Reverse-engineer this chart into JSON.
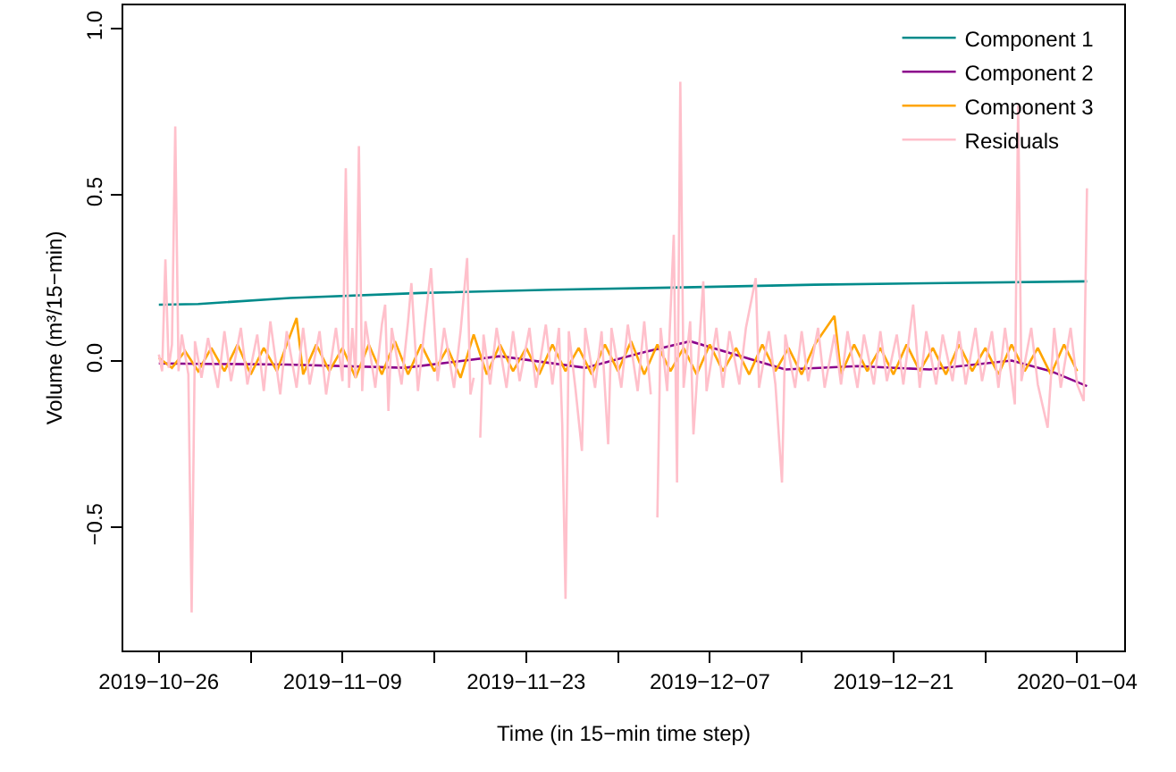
{
  "chart_data": {
    "type": "line",
    "xlabel": "Time (in 15−min time step)",
    "ylabel": "Volume (m³/15−min)",
    "xlim": [
      "2019-10-23T07:00",
      "2020-01-07T14:00"
    ],
    "xticks": [
      {
        "value": "2019-10-26",
        "label": "2019−10−26"
      },
      {
        "value": "2019-11-02",
        "label": null
      },
      {
        "value": "2019-11-09",
        "label": "2019−11−09"
      },
      {
        "value": "2019-11-16",
        "label": null
      },
      {
        "value": "2019-11-23",
        "label": "2019−11−23"
      },
      {
        "value": "2019-11-30",
        "label": null
      },
      {
        "value": "2019-12-07",
        "label": "2019−12−07"
      },
      {
        "value": "2019-12-14",
        "label": null
      },
      {
        "value": "2019-12-21",
        "label": "2019−12−21"
      },
      {
        "value": "2019-12-28",
        "label": null
      },
      {
        "value": "2020-01-04",
        "label": "2020−01−04"
      }
    ],
    "ylim": [
      -0.87,
      1.07
    ],
    "yticks": [
      {
        "value": -0.5,
        "label": "−0.5"
      },
      {
        "value": 0,
        "label": "0.0"
      },
      {
        "value": 0.5,
        "label": "0.5"
      },
      {
        "value": 1.0,
        "label": "1.0"
      }
    ],
    "legend": "top right",
    "marker": "none",
    "line_style": "solid",
    "series": [
      {
        "name": "Component 1",
        "color": "#008b8b",
        "x": [
          "2019-10-26",
          "2019-10-29",
          "2019-11-05",
          "2019-11-15",
          "2019-11-25",
          "2019-12-05",
          "2019-12-15",
          "2019-12-25",
          "2020-01-04T18:00"
        ],
        "values": [
          0.17,
          0.172,
          0.19,
          0.205,
          0.215,
          0.222,
          0.23,
          0.235,
          0.24
        ]
      },
      {
        "name": "Component 2",
        "color": "#8b008b",
        "x": [
          "2019-10-26",
          "2019-11-04T18:00",
          "2019-11-13T18:00",
          "2019-11-21",
          "2019-11-27T12:00",
          "2019-12-01T18:00",
          "2019-12-05T12:00",
          "2019-12-12T18:00",
          "2019-12-18T06:00",
          "2019-12-23T18:00",
          "2019-12-30",
          "2020-01-02",
          "2020-01-04T18:00"
        ],
        "values": [
          -0.007,
          -0.01,
          -0.02,
          0.015,
          -0.02,
          0.025,
          0.06,
          -0.025,
          -0.015,
          -0.025,
          0.002,
          -0.03,
          -0.075
        ]
      },
      {
        "name": "Component 3",
        "color": "#ffa500",
        "x": [
          "2019-10-26",
          "2019-10-27",
          "2019-10-28",
          "2019-10-29",
          "2019-10-30",
          "2019-10-31",
          "2019-11-01",
          "2019-11-02",
          "2019-11-03",
          "2019-11-04",
          "2019-11-05T12:00",
          "2019-11-06",
          "2019-11-07",
          "2019-11-08",
          "2019-11-09",
          "2019-11-10",
          "2019-11-11",
          "2019-11-12",
          "2019-11-13",
          "2019-11-14",
          "2019-11-15",
          "2019-11-16",
          "2019-11-17",
          "2019-11-18",
          "2019-11-19",
          "2019-11-20",
          "2019-11-21",
          "2019-11-22",
          "2019-11-23",
          "2019-11-24",
          "2019-11-25",
          "2019-11-26",
          "2019-11-27",
          "2019-11-28",
          "2019-11-29",
          "2019-11-30",
          "2019-12-01",
          "2019-12-02",
          "2019-12-03",
          "2019-12-04",
          "2019-12-05",
          "2019-12-06",
          "2019-12-07",
          "2019-12-08",
          "2019-12-09",
          "2019-12-10",
          "2019-12-11",
          "2019-12-12",
          "2019-12-13",
          "2019-12-14",
          "2019-12-15",
          "2019-12-16T12:00",
          "2019-12-17",
          "2019-12-18",
          "2019-12-19",
          "2019-12-20",
          "2019-12-21",
          "2019-12-22",
          "2019-12-23",
          "2019-12-24",
          "2019-12-25",
          "2019-12-26",
          "2019-12-27",
          "2019-12-28",
          "2019-12-29",
          "2019-12-30",
          "2019-12-31",
          "2020-01-01",
          "2020-01-02",
          "2020-01-03",
          "2020-01-04"
        ],
        "values": [
          0.01,
          -0.02,
          0.03,
          -0.03,
          0.04,
          -0.03,
          0.05,
          -0.04,
          0.04,
          -0.03,
          0.13,
          -0.04,
          0.05,
          -0.03,
          0.04,
          -0.05,
          0.05,
          -0.04,
          0.06,
          -0.04,
          0.05,
          -0.03,
          0.04,
          -0.05,
          0.08,
          -0.04,
          0.05,
          -0.03,
          0.04,
          -0.04,
          0.05,
          -0.03,
          0.04,
          -0.04,
          0.05,
          -0.03,
          0.06,
          -0.04,
          0.05,
          -0.03,
          0.04,
          -0.04,
          0.05,
          -0.03,
          0.04,
          -0.04,
          0.05,
          -0.03,
          0.04,
          -0.04,
          0.05,
          0.136,
          -0.04,
          0.05,
          -0.03,
          0.04,
          -0.04,
          0.05,
          -0.03,
          0.04,
          -0.04,
          0.05,
          -0.03,
          0.04,
          -0.04,
          0.05,
          -0.03,
          0.04,
          -0.04,
          0.05,
          -0.03
        ]
      },
      {
        "name": "Residuals",
        "color": "#ffc0cb",
        "x": [
          "2019-10-26T00:00",
          "2019-10-26T06:00",
          "2019-10-26T12:00",
          "2019-10-26T18:00",
          "2019-10-27T00:00",
          "2019-10-27T06:00",
          "2019-10-27T12:00",
          "2019-10-27T18:00",
          "2019-10-28T06:00",
          "2019-10-28T12:00",
          "2019-10-28T18:00",
          "2019-10-29T06:00",
          "2019-10-29T18:00",
          "2019-10-30T12:00",
          "2019-10-31T00:00",
          "2019-10-31T12:00",
          "2019-11-01T06:00",
          "2019-11-01T18:00",
          "2019-11-02T12:00",
          "2019-11-03T00:00",
          "2019-11-03T12:00",
          "2019-11-04T06:00",
          "2019-11-04T18:00",
          "2019-11-05T12:00",
          "2019-11-06T00:00",
          "2019-11-06T12:00",
          "2019-11-07T06:00",
          "2019-11-07T18:00",
          "2019-11-08T12:00",
          "2019-11-09T00:00",
          "2019-11-09T06:00",
          "2019-11-09T12:00",
          "2019-11-09T18:00",
          "2019-11-10T00:00",
          "2019-11-10T06:00",
          "2019-11-10T12:00",
          "2019-11-10T18:00",
          "2019-11-11T12:00",
          "2019-11-12T00:00",
          "2019-11-12T06:00",
          "2019-11-12T12:00",
          "2019-11-12T18:00",
          "2019-11-13T12:00",
          "2019-11-14T00:00",
          "2019-11-14T06:00",
          "2019-11-14T18:00",
          "2019-11-15T06:00",
          "2019-11-15T18:00",
          "2019-11-16T06:00",
          "2019-11-16T18:00",
          "2019-11-17T12:00",
          "2019-11-18T00:00",
          "2019-11-18T12:00",
          "2019-11-18T18:00",
          "2019-11-19T00:00",
          "2019-11-19T06:00",
          "2019-11-19T12:00",
          "2019-11-19T18:00",
          "2019-11-20T06:00",
          "2019-11-20T18:00",
          "2019-11-21T12:00",
          "2019-11-22T00:00",
          "2019-11-22T12:00",
          "2019-11-23T06:00",
          "2019-11-23T18:00",
          "2019-11-24T12:00",
          "2019-11-25T00:00",
          "2019-11-25T12:00",
          "2019-11-25T18:00",
          "2019-11-26T00:00",
          "2019-11-26T06:00",
          "2019-11-26T18:00",
          "2019-11-27T06:00",
          "2019-11-27T12:00",
          "2019-11-28T06:00",
          "2019-11-28T18:00",
          "2019-11-29T06:00",
          "2019-11-29T12:00",
          "2019-11-30T06:00",
          "2019-11-30T18:00",
          "2019-12-01T12:00",
          "2019-12-02T00:00",
          "2019-12-02T12:00",
          "2019-12-02T18:00",
          "2019-12-03T00:00",
          "2019-12-03T06:00",
          "2019-12-03T18:00",
          "2019-12-04T06:00",
          "2019-12-04T12:00",
          "2019-12-04T18:00",
          "2019-12-05T00:00",
          "2019-12-05T12:00",
          "2019-12-05T18:00",
          "2019-12-06T12:00",
          "2019-12-06T18:00",
          "2019-12-07T12:00",
          "2019-12-08T00:00",
          "2019-12-08T12:00",
          "2019-12-09T06:00",
          "2019-12-09T18:00",
          "2019-12-10T12:00",
          "2019-12-10T18:00",
          "2019-12-11T12:00",
          "2019-12-12T00:00",
          "2019-12-12T12:00",
          "2019-12-12T18:00",
          "2019-12-13T12:00",
          "2019-12-14T00:00",
          "2019-12-14T12:00",
          "2019-12-15T06:00",
          "2019-12-15T18:00",
          "2019-12-16T12:00",
          "2019-12-17T00:00",
          "2019-12-17T12:00",
          "2019-12-18T06:00",
          "2019-12-18T18:00",
          "2019-12-19T12:00",
          "2019-12-20T00:00",
          "2019-12-20T12:00",
          "2019-12-21T06:00",
          "2019-12-21T18:00",
          "2019-12-22T12:00",
          "2019-12-23T00:00",
          "2019-12-23T12:00",
          "2019-12-24T06:00",
          "2019-12-24T18:00",
          "2019-12-25T12:00",
          "2019-12-26T00:00",
          "2019-12-26T12:00",
          "2019-12-27T06:00",
          "2019-12-27T18:00",
          "2019-12-28T12:00",
          "2019-12-29T00:00",
          "2019-12-29T12:00",
          "2019-12-30T06:00",
          "2019-12-30T12:00",
          "2019-12-30T18:00",
          "2019-12-31T12:00",
          "2020-01-01T00:00",
          "2020-01-01T18:00",
          "2020-01-02T06:00",
          "2020-01-02T18:00",
          "2020-01-03T12:00",
          "2020-01-04T00:00",
          "2020-01-04T12:00",
          "2020-01-04T18:00"
        ],
        "values": [
          0.02,
          -0.03,
          0.306,
          -0.02,
          0.05,
          0.706,
          -0.03,
          0.08,
          -0.04,
          -0.756,
          0.06,
          -0.05,
          0.07,
          -0.08,
          0.09,
          -0.06,
          0.1,
          -0.07,
          0.08,
          -0.09,
          0.12,
          -0.1,
          0.09,
          -0.08,
          0.1,
          -0.07,
          0.09,
          -0.1,
          0.1,
          -0.06,
          0.58,
          -0.08,
          0.1,
          -0.05,
          0.647,
          -0.09,
          0.12,
          -0.08,
          0.11,
          0.17,
          -0.15,
          0.1,
          -0.07,
          0.12,
          0.235,
          -0.09,
          0.1,
          0.28,
          -0.06,
          0.1,
          -0.08,
          0.09,
          0.31,
          -0.1,
          -0.05,
          null,
          -0.23,
          0.08,
          -0.07,
          0.1,
          -0.08,
          0.09,
          -0.06,
          0.1,
          -0.08,
          0.11,
          -0.07,
          0.1,
          -0.19,
          -0.715,
          0.09,
          -0.08,
          -0.27,
          0.1,
          -0.08,
          0.09,
          -0.25,
          0.1,
          -0.08,
          0.11,
          -0.09,
          0.12,
          -0.1,
          null,
          -0.47,
          0.1,
          -0.09,
          0.38,
          -0.365,
          0.84,
          -0.08,
          0.12,
          -0.22,
          0.24,
          -0.09,
          0.1,
          -0.08,
          0.09,
          -0.07,
          0.1,
          0.25,
          -0.08,
          0.09,
          -0.07,
          -0.365,
          0.08,
          -0.08,
          0.09,
          -0.06,
          0.1,
          -0.08,
          0.08,
          -0.07,
          0.09,
          -0.08,
          0.08,
          -0.07,
          0.09,
          -0.06,
          0.08,
          -0.07,
          0.17,
          -0.08,
          0.09,
          -0.07,
          0.08,
          -0.06,
          0.09,
          -0.07,
          0.1,
          -0.06,
          0.09,
          -0.08,
          0.1,
          -0.13,
          0.77,
          -0.06,
          0.1,
          -0.07,
          -0.2,
          0.1,
          -0.08,
          0.1,
          -0.07,
          -0.12,
          0.52
        ]
      }
    ]
  }
}
